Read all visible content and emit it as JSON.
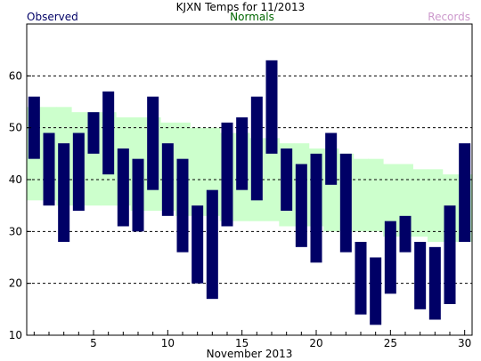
{
  "chart_data": {
    "type": "bar",
    "title": "KJXN Temps for 11/2013",
    "xlabel": "November 2013",
    "legend": {
      "observed": "Observed",
      "normals": "Normals",
      "records": "Records"
    },
    "x_ticks": [
      5,
      10,
      15,
      20,
      25,
      30
    ],
    "y_ticks": [
      10,
      20,
      30,
      40,
      50,
      60
    ],
    "ylim": [
      10,
      70
    ],
    "xlim": [
      0.5,
      30.5
    ],
    "grid": "horizontal dashed",
    "colors": {
      "observed": "#000066",
      "normals": "#ccffcc",
      "normals_text": "#006600",
      "records_text": "#cc99cc"
    },
    "days": [
      1,
      2,
      3,
      4,
      5,
      6,
      7,
      8,
      9,
      10,
      11,
      12,
      13,
      14,
      15,
      16,
      17,
      18,
      19,
      20,
      21,
      22,
      23,
      24,
      25,
      26,
      27,
      28,
      29,
      30
    ],
    "observed_high": [
      56,
      49,
      47,
      49,
      53,
      57,
      46,
      44,
      56,
      47,
      44,
      35,
      38,
      51,
      52,
      56,
      63,
      46,
      43,
      45,
      49,
      45,
      28,
      25,
      32,
      33,
      28,
      27,
      35,
      47
    ],
    "observed_low": [
      44,
      35,
      28,
      34,
      45,
      41,
      31,
      30,
      38,
      33,
      26,
      20,
      17,
      31,
      38,
      36,
      45,
      34,
      27,
      24,
      39,
      26,
      14,
      12,
      18,
      26,
      15,
      13,
      16,
      28
    ],
    "normal_high": [
      54,
      54,
      54,
      53,
      53,
      53,
      52,
      52,
      52,
      51,
      51,
      50,
      50,
      49,
      49,
      48,
      48,
      47,
      47,
      46,
      46,
      45,
      44,
      44,
      43,
      43,
      42,
      42,
      41,
      41
    ],
    "normal_low": [
      36,
      36,
      35,
      35,
      35,
      35,
      35,
      34,
      34,
      34,
      33,
      33,
      33,
      32,
      32,
      32,
      32,
      31,
      31,
      31,
      30,
      30,
      30,
      30,
      29,
      29,
      29,
      28,
      28,
      28
    ]
  }
}
